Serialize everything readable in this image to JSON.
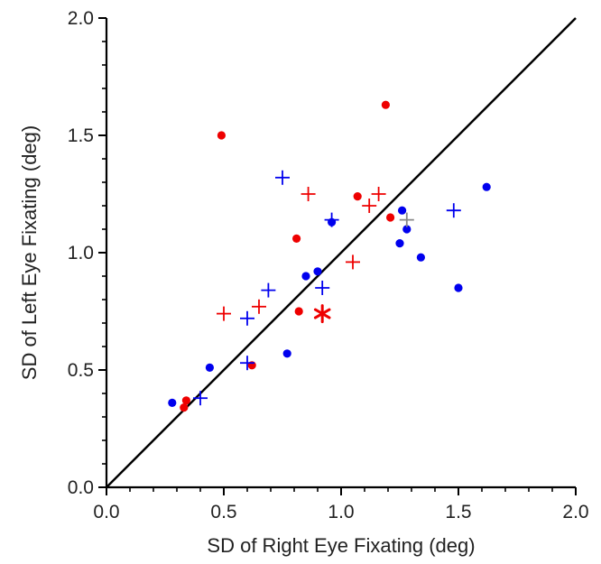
{
  "chart_data": {
    "type": "scatter",
    "xlabel": "SD of Right Eye Fixating (deg)",
    "ylabel": "SD of Left Eye Fixating (deg)",
    "xlim": [
      0.0,
      2.0
    ],
    "ylim": [
      0.0,
      2.0
    ],
    "x_ticks": [
      "0.0",
      "0.5",
      "1.0",
      "1.5",
      "2.0"
    ],
    "y_ticks": [
      "0.0",
      "0.5",
      "1.0",
      "1.5",
      "2.0"
    ],
    "grid": false,
    "legend": "none",
    "reference_line": {
      "type": "identity",
      "from": [
        0,
        0
      ],
      "to": [
        2,
        2
      ],
      "color": "#000000"
    },
    "series": [
      {
        "marker": "dot",
        "color": "#0000ee",
        "points": [
          [
            0.28,
            0.36
          ],
          [
            0.44,
            0.51
          ],
          [
            0.77,
            0.57
          ],
          [
            0.85,
            0.9
          ],
          [
            0.9,
            0.92
          ],
          [
            0.96,
            1.13
          ],
          [
            1.25,
            1.04
          ],
          [
            1.26,
            1.18
          ],
          [
            1.28,
            1.1
          ],
          [
            1.34,
            0.98
          ],
          [
            1.5,
            0.85
          ],
          [
            1.62,
            1.28
          ]
        ]
      },
      {
        "marker": "dot",
        "color": "#ee0000",
        "points": [
          [
            0.33,
            0.34
          ],
          [
            0.34,
            0.37
          ],
          [
            0.49,
            1.5
          ],
          [
            0.62,
            0.52
          ],
          [
            0.81,
            1.06
          ],
          [
            0.82,
            0.75
          ],
          [
            1.07,
            1.24
          ],
          [
            1.19,
            1.63
          ],
          [
            1.21,
            1.15
          ]
        ]
      },
      {
        "marker": "plus",
        "color": "#0000ee",
        "points": [
          [
            0.4,
            0.38
          ],
          [
            0.6,
            0.53
          ],
          [
            0.6,
            0.72
          ],
          [
            0.69,
            0.84
          ],
          [
            0.75,
            1.32
          ],
          [
            0.92,
            0.85
          ],
          [
            0.96,
            1.14
          ],
          [
            1.48,
            1.18
          ]
        ]
      },
      {
        "marker": "plus",
        "color": "#ee0000",
        "points": [
          [
            0.5,
            0.74
          ],
          [
            0.65,
            0.77
          ],
          [
            0.86,
            1.25
          ],
          [
            1.05,
            0.96
          ],
          [
            1.12,
            1.2
          ],
          [
            1.16,
            1.25
          ]
        ]
      },
      {
        "marker": "plus",
        "color": "#888888",
        "points": [
          [
            1.28,
            1.14
          ]
        ]
      },
      {
        "marker": "asterisk",
        "color": "#ee0000",
        "points": [
          [
            0.92,
            0.74
          ]
        ]
      }
    ]
  }
}
